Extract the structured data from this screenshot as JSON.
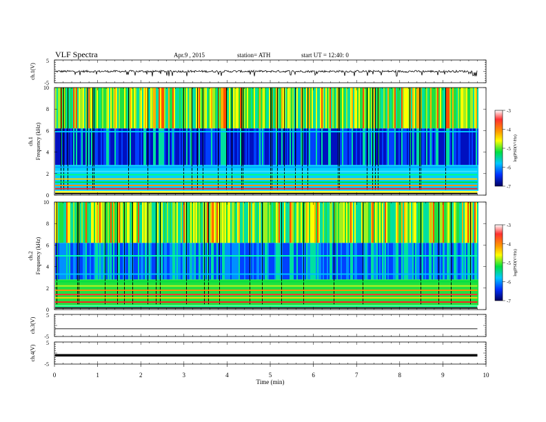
{
  "header": {
    "title": "VLF  Spectra",
    "date": "Apr.9  , 2015",
    "station": "station= ATH",
    "start": "start  UT =    12:40: 0"
  },
  "chart_data": [
    {
      "type": "line",
      "panel": "ch1-waveform",
      "ylabel": "ch.1(V)",
      "yticks": [
        "5",
        "-5"
      ],
      "ylim": [
        -5,
        5
      ],
      "description_values": "waveform oscillating around 0 V with amplitude ~0.5 V and frequent spikes to about -1.5 V"
    },
    {
      "type": "heatmap",
      "panel": "ch1-spectrogram",
      "ylabel_channel": "ch.1",
      "ylabel": "Frequency  (kHz)",
      "ylim": [
        0,
        10
      ],
      "yticks": [
        "0",
        "2",
        "4",
        "6",
        "8",
        "10"
      ],
      "colorbar": {
        "label": "log(PSD(V²/Hz)",
        "range": [
          -7,
          -3
        ],
        "ticks": [
          "-3",
          "-4",
          "-5",
          "-6",
          "-7"
        ]
      }
    },
    {
      "type": "heatmap",
      "panel": "ch2-spectrogram",
      "ylabel_channel": "ch.2",
      "ylabel": "Frequency  (kHz)",
      "ylim": [
        0,
        10
      ],
      "yticks": [
        "0",
        "2",
        "4",
        "6",
        "8",
        "10"
      ],
      "colorbar": {
        "label": "log(PSD(V²/Hz)",
        "range": [
          -7,
          -3
        ],
        "ticks": [
          "-3",
          "-4",
          "-5",
          "-6",
          "-7"
        ]
      }
    },
    {
      "type": "line",
      "panel": "ch3-waveform",
      "ylabel": "ch.3(V)",
      "yticks": [
        "5",
        "-5"
      ],
      "ylim": [
        -5,
        5
      ],
      "values_constant": -1.5
    },
    {
      "type": "line",
      "panel": "ch4-waveform",
      "ylabel": "ch.4(V)",
      "yticks": [
        "5",
        "-5"
      ],
      "ylim": [
        -5,
        5
      ],
      "values_constant": -1.0
    }
  ],
  "xaxis": {
    "label": "Time  (min)",
    "ticks": [
      "0",
      "1",
      "2",
      "3",
      "4",
      "5",
      "6",
      "7",
      "8",
      "9",
      "10"
    ],
    "xlim": [
      0,
      10
    ],
    "data_end": 9.8
  },
  "colors": {
    "background": "#ffffff",
    "axis": "#000000"
  }
}
